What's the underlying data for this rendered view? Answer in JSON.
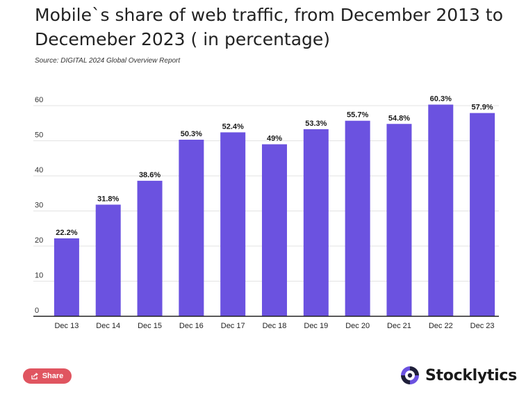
{
  "title": "Mobile`s share of web traffic, from December 2013 to Decemeber 2023 ( in percentage)",
  "source": "Source: DIGITAL 2024 Global Overview Report",
  "share_label": "Share",
  "brand_name": "Stocklytics",
  "colors": {
    "bar": "#6b52e0",
    "share": "#e05560",
    "logo_dark": "#1f1f3a",
    "logo_accent": "#6b52e0"
  },
  "chart_data": {
    "type": "bar",
    "title": "Mobile`s share of web traffic, from December 2013 to Decemeber 2023 ( in percentage)",
    "xlabel": "",
    "ylabel": "",
    "categories": [
      "Dec 13",
      "Dec 14",
      "Dec 15",
      "Dec 16",
      "Dec 17",
      "Dec 18",
      "Dec 19",
      "Dec 20",
      "Dec 21",
      "Dec 22",
      "Dec 23"
    ],
    "values": [
      22.2,
      31.8,
      38.6,
      50.3,
      52.4,
      49,
      53.3,
      55.7,
      54.8,
      60.3,
      57.9
    ],
    "data_labels": [
      "22.2%",
      "31.8%",
      "38.6%",
      "50.3%",
      "52.4%",
      "49%",
      "53.3%",
      "55.7%",
      "54.8%",
      "60.3%",
      "57.9%"
    ],
    "ylim": [
      0,
      60
    ],
    "yticks": [
      0,
      10,
      20,
      30,
      40,
      50,
      60
    ],
    "grid": true
  }
}
